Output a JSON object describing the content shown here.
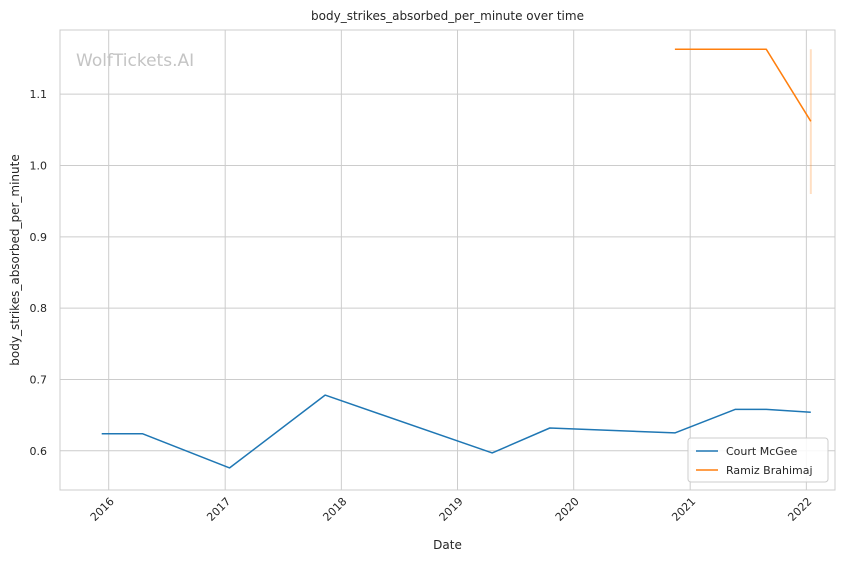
{
  "chart_data": {
    "type": "line",
    "title": "body_strikes_absorbed_per_minute over time",
    "xlabel": "Date",
    "ylabel": "body_strikes_absorbed_per_minute",
    "watermark": "WolfTickets.AI",
    "xlim": [
      "2015-08-01",
      "2022-04-01"
    ],
    "ylim": [
      0.545,
      1.19
    ],
    "x_ticks": [
      "2016-01-01",
      "2017-01-01",
      "2018-01-01",
      "2019-01-01",
      "2020-01-01",
      "2021-01-01",
      "2022-01-01"
    ],
    "x_tick_labels": [
      "2016",
      "2017",
      "2018",
      "2019",
      "2020",
      "2021",
      "2022"
    ],
    "y_ticks": [
      0.6,
      0.7,
      0.8,
      0.9,
      1.0,
      1.1
    ],
    "y_tick_labels": [
      "0.6",
      "0.7",
      "0.8",
      "0.9",
      "1.0",
      "1.1"
    ],
    "grid": true,
    "legend_position": "bottom-right",
    "series": [
      {
        "name": "Court McGee",
        "color": "#1f77b4",
        "x": [
          "2015-12-10",
          "2016-04-16",
          "2017-01-15",
          "2017-11-11",
          "2019-04-20",
          "2019-10-18",
          "2020-11-14",
          "2021-05-22",
          "2021-08-28",
          "2022-01-15"
        ],
        "y": [
          0.624,
          0.624,
          0.576,
          0.678,
          0.597,
          0.632,
          0.625,
          0.658,
          0.658,
          0.654
        ]
      },
      {
        "name": "Ramiz Brahimaj",
        "color": "#ff7f0e",
        "x": [
          "2020-11-14",
          "2021-08-28",
          "2022-01-15"
        ],
        "y": [
          1.163,
          1.163,
          1.062
        ]
      }
    ],
    "error_band": {
      "series": "Ramiz Brahimaj",
      "x": "2022-01-15",
      "y_low": 0.96,
      "y_high": 1.163
    }
  }
}
